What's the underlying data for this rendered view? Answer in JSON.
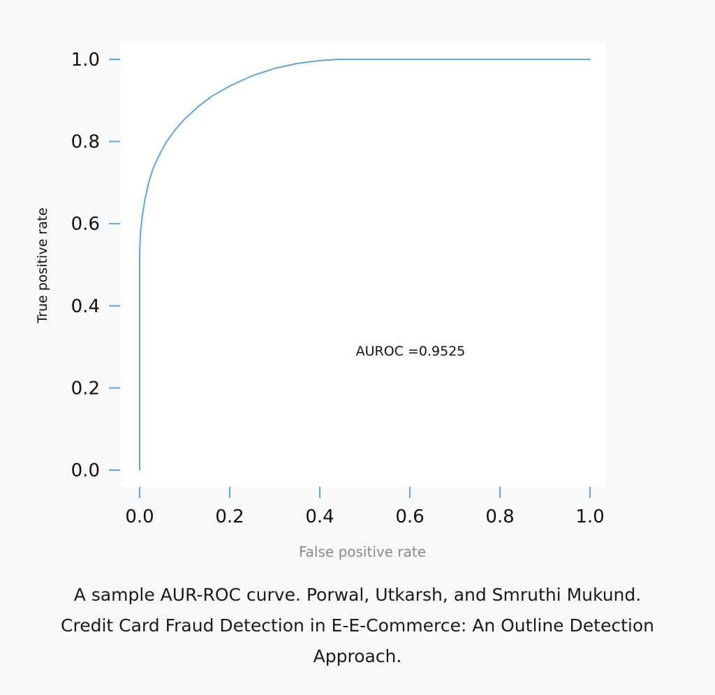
{
  "chart_data": {
    "type": "line",
    "title": "",
    "xlabel": "False positive rate",
    "ylabel": "True positive rate",
    "xlim": [
      0,
      1
    ],
    "ylim": [
      0,
      1
    ],
    "x_ticks": [
      "0.0",
      "0.2",
      "0.4",
      "0.6",
      "0.8",
      "1.0"
    ],
    "y_ticks": [
      "0.0",
      "0.2",
      "0.4",
      "0.6",
      "0.8",
      "1.0"
    ],
    "grid": false,
    "annotation": "AUROC =0.9525",
    "series": [
      {
        "color": "#5aa7e0",
        "x": [
          0.0,
          0.0,
          0.0,
          0.002,
          0.006,
          0.012,
          0.02,
          0.03,
          0.045,
          0.06,
          0.08,
          0.1,
          0.13,
          0.16,
          0.2,
          0.25,
          0.3,
          0.35,
          0.4,
          0.44,
          0.5,
          0.6,
          0.7,
          0.8,
          0.9,
          1.0
        ],
        "y": [
          0.0,
          0.3,
          0.53,
          0.58,
          0.62,
          0.66,
          0.7,
          0.735,
          0.77,
          0.8,
          0.83,
          0.855,
          0.885,
          0.91,
          0.935,
          0.96,
          0.978,
          0.99,
          0.997,
          1.0,
          1.0,
          1.0,
          1.0,
          1.0,
          1.0,
          1.0
        ]
      }
    ]
  },
  "caption": {
    "line1": "A sample AUR-ROC curve. Porwal, Utkarsh, and Smruthi Mukund.",
    "line2": "Credit Card Fraud Detection in E-E-Commerce: An Outline Detection",
    "line3": "Approach."
  }
}
